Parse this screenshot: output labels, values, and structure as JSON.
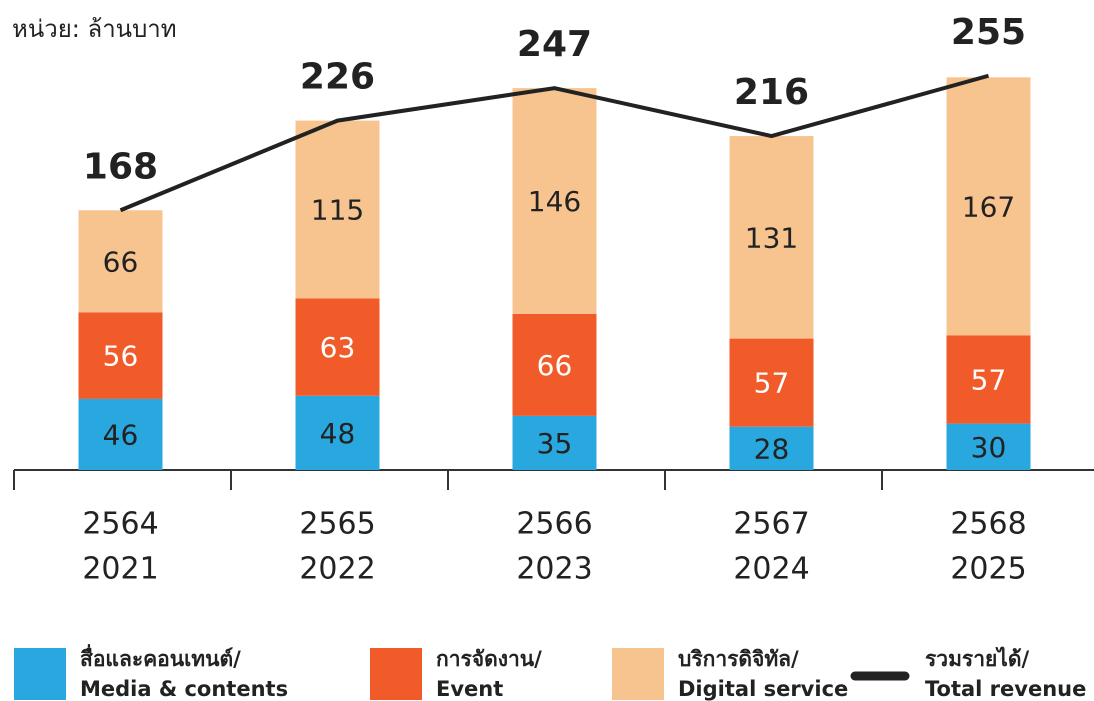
{
  "chart_data": {
    "type": "bar",
    "stacked": true,
    "subtitle": "หน่วย: ล้านบาท",
    "categories": [
      [
        "2564",
        "2021"
      ],
      [
        "2565",
        "2022"
      ],
      [
        "2566",
        "2023"
      ],
      [
        "2567",
        "2024"
      ],
      [
        "2568",
        "2025"
      ]
    ],
    "series": [
      {
        "name": [
          "สื่อและคอนเทนต์/",
          "Media & contents"
        ],
        "color": "#29a8e0",
        "label_color": "#222222",
        "values": [
          46,
          48,
          35,
          28,
          30
        ]
      },
      {
        "name": [
          "การจัดงาน/",
          "Event"
        ],
        "color": "#f15a29",
        "label_color": "#ffffff",
        "values": [
          56,
          63,
          66,
          57,
          57
        ]
      },
      {
        "name": [
          "บริการดิจิทัล/",
          "Digital service"
        ],
        "color": "#f7c490",
        "label_color": "#222222",
        "values": [
          66,
          115,
          146,
          131,
          167
        ]
      },
      {
        "name": [
          "รวมรายได้/",
          "Total revenue"
        ],
        "type": "line",
        "color": "#222222",
        "values": [
          168,
          226,
          247,
          216,
          255
        ]
      }
    ],
    "ylim": [
      0,
      304
    ]
  }
}
